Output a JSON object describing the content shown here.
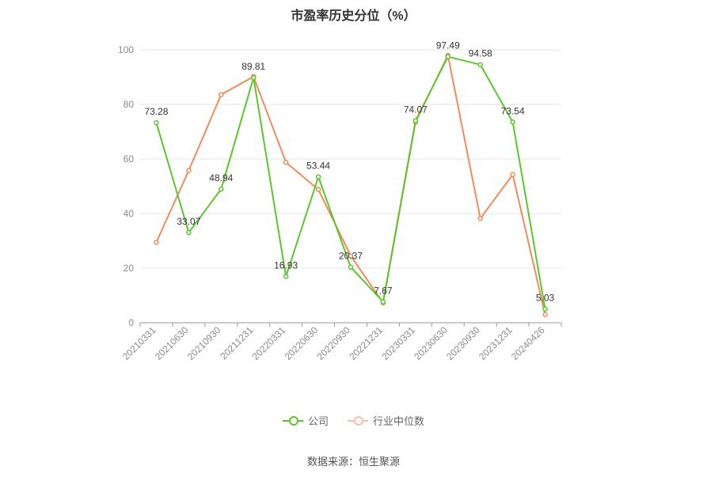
{
  "chart_data": {
    "type": "line",
    "title": "市盈率历史分位（%）",
    "categories": [
      "20210331",
      "20210630",
      "20210930",
      "20211231",
      "20220331",
      "20220630",
      "20220930",
      "20221231",
      "20230331",
      "20230630",
      "20230930",
      "20231231",
      "20240426"
    ],
    "ylim": [
      0,
      100
    ],
    "yticks": [
      0,
      20,
      40,
      60,
      80,
      100
    ],
    "grid": true,
    "legend_position": "bottom",
    "series": [
      {
        "name": "公司",
        "color": "#5cc62c",
        "values": [
          73.28,
          33.07,
          48.94,
          89.81,
          16.93,
          53.44,
          20.37,
          7.67,
          74.07,
          97.49,
          94.58,
          73.54,
          5.03
        ],
        "labels": [
          "73.28",
          "33.07",
          "48.94",
          "89.81",
          "16.93",
          "53.44",
          "20.37",
          "7.67",
          "74.07",
          "97.49",
          "94.58",
          "73.54",
          "5.03"
        ]
      },
      {
        "name": "行业中位数",
        "color": "#f08c5a",
        "values": [
          29.5,
          55.8,
          83.6,
          90.2,
          58.8,
          48.8,
          24.5,
          7.3,
          73.5,
          98.0,
          38.2,
          54.3,
          3.0
        ]
      }
    ]
  },
  "source": "数据来源：恒生聚源"
}
